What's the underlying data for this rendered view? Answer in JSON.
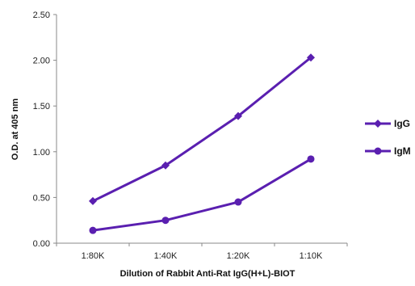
{
  "chart_data": {
    "type": "line",
    "categories": [
      "1:80K",
      "1:40K",
      "1:20K",
      "1:10K"
    ],
    "series": [
      {
        "name": "IgG",
        "marker": "diamond",
        "values": [
          0.46,
          0.85,
          1.39,
          2.03
        ]
      },
      {
        "name": "IgM",
        "marker": "circle",
        "values": [
          0.14,
          0.25,
          0.45,
          0.92
        ]
      }
    ],
    "yticks": [
      "0.00",
      "0.50",
      "1.00",
      "1.50",
      "2.00",
      "2.50"
    ],
    "ylim": [
      0,
      2.5
    ],
    "xlabel": "Dilution of Rabbit Anti-Rat IgG(H+L)-BIOT",
    "ylabel": "O.D. at 405 nm",
    "grid": false,
    "legend_position": "right",
    "colors": {
      "series": "#5a1fb0",
      "axis": "#888888"
    }
  }
}
